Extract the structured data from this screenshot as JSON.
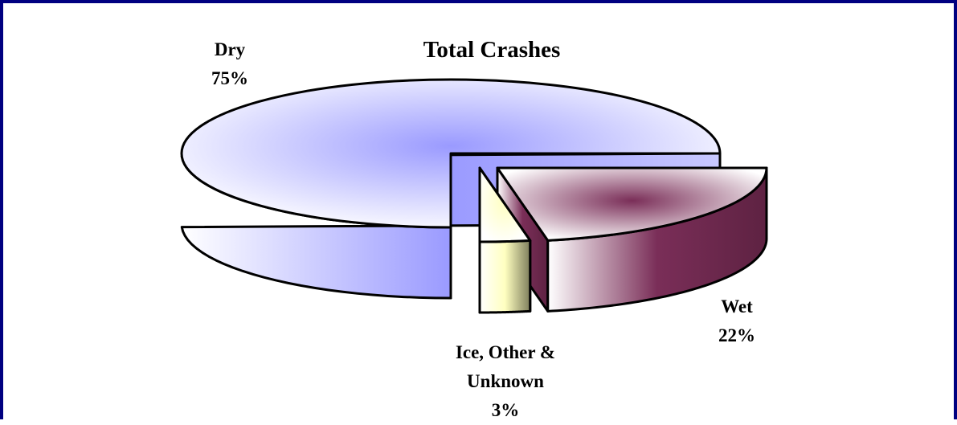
{
  "chart_data": {
    "type": "pie",
    "title": "Total Crashes",
    "categories": [
      "Dry",
      "Wet",
      "Ice, Other & Unknown"
    ],
    "values": [
      75,
      22,
      3
    ],
    "value_labels": [
      "75%",
      "22%",
      "3%"
    ],
    "colors": [
      "#9a9aff",
      "#7a2e58",
      "#ffffc0"
    ]
  }
}
